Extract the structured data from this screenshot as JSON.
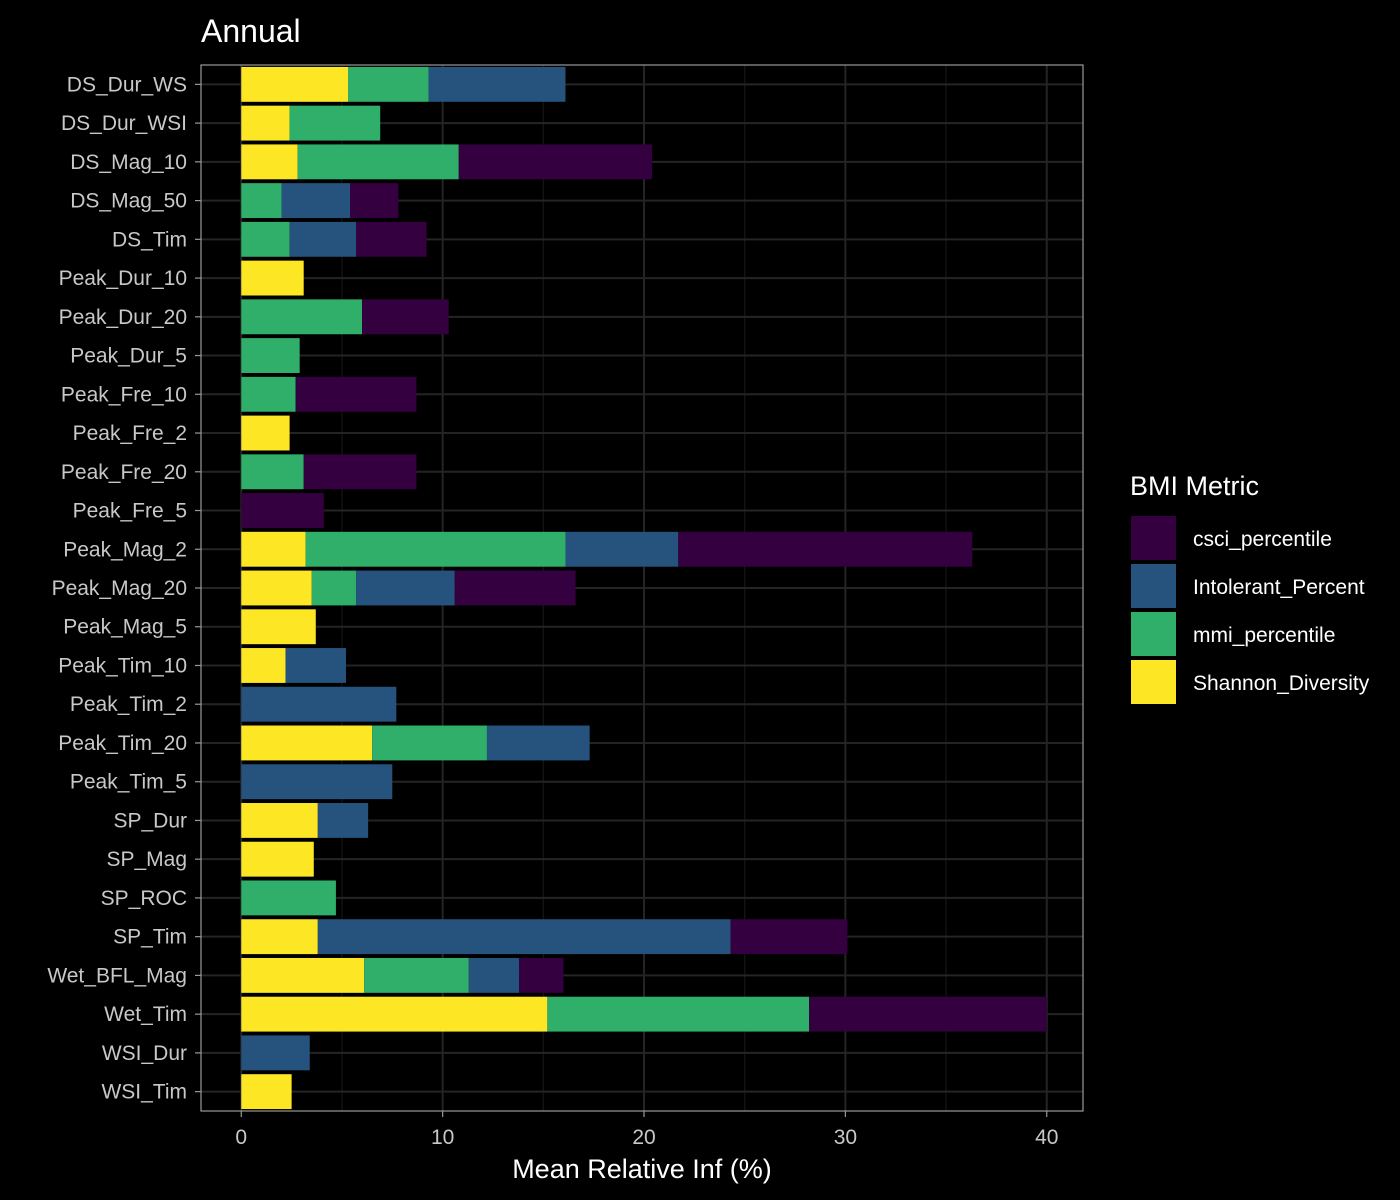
{
  "chart_data": {
    "type": "bar",
    "orientation": "horizontal",
    "stacked": true,
    "title": "Annual",
    "xlabel": "Mean Relative Inf (%)",
    "ylabel": "",
    "xlim": [
      -2,
      41.8
    ],
    "xticks": [
      0,
      10,
      20,
      30,
      40
    ],
    "grid": true,
    "legend_position": "right",
    "legend_title": "BMI Metric",
    "stack_order": [
      "Shannon_Diversity",
      "mmi_percentile",
      "Intolerant_Percent",
      "csci_percentile"
    ],
    "categories": [
      "DS_Dur_WS",
      "DS_Dur_WSI",
      "DS_Mag_10",
      "DS_Mag_50",
      "DS_Tim",
      "Peak_Dur_10",
      "Peak_Dur_20",
      "Peak_Dur_5",
      "Peak_Fre_10",
      "Peak_Fre_2",
      "Peak_Fre_20",
      "Peak_Fre_5",
      "Peak_Mag_2",
      "Peak_Mag_20",
      "Peak_Mag_5",
      "Peak_Tim_10",
      "Peak_Tim_2",
      "Peak_Tim_20",
      "Peak_Tim_5",
      "SP_Dur",
      "SP_Mag",
      "SP_ROC",
      "SP_Tim",
      "Wet_BFL_Mag",
      "Wet_Tim",
      "WSI_Dur",
      "WSI_Tim"
    ],
    "series": [
      {
        "name": "csci_percentile",
        "color": "#35003f",
        "values": [
          0,
          0,
          9.6,
          2.4,
          3.5,
          0,
          4.3,
          0,
          6.0,
          0,
          5.6,
          4.1,
          14.6,
          6.0,
          0,
          0,
          0,
          0,
          0,
          0,
          0,
          0,
          5.8,
          2.2,
          11.8,
          0,
          0
        ]
      },
      {
        "name": "Intolerant_Percent",
        "color": "#25537e",
        "values": [
          6.8,
          0,
          0,
          3.4,
          3.3,
          0,
          0,
          0,
          0,
          0,
          0,
          0,
          5.6,
          4.9,
          0,
          3.0,
          7.7,
          5.1,
          7.5,
          2.5,
          0,
          0,
          20.5,
          2.5,
          0,
          3.4,
          0
        ]
      },
      {
        "name": "mmi_percentile",
        "color": "#2faf6a",
        "values": [
          4.0,
          4.5,
          8.0,
          2.0,
          2.4,
          0,
          6.0,
          2.9,
          2.7,
          0,
          3.1,
          0,
          12.9,
          2.2,
          0,
          0,
          0,
          5.7,
          0,
          0,
          0,
          4.7,
          0,
          5.2,
          13.0,
          0,
          0
        ]
      },
      {
        "name": "Shannon_Diversity",
        "color": "#fde725",
        "values": [
          5.3,
          2.4,
          2.8,
          0,
          0,
          3.1,
          0,
          0,
          0,
          2.4,
          0,
          0,
          3.2,
          3.5,
          3.7,
          2.2,
          0,
          6.5,
          0,
          3.8,
          3.6,
          0,
          3.8,
          6.1,
          15.2,
          0,
          2.5
        ]
      }
    ]
  }
}
